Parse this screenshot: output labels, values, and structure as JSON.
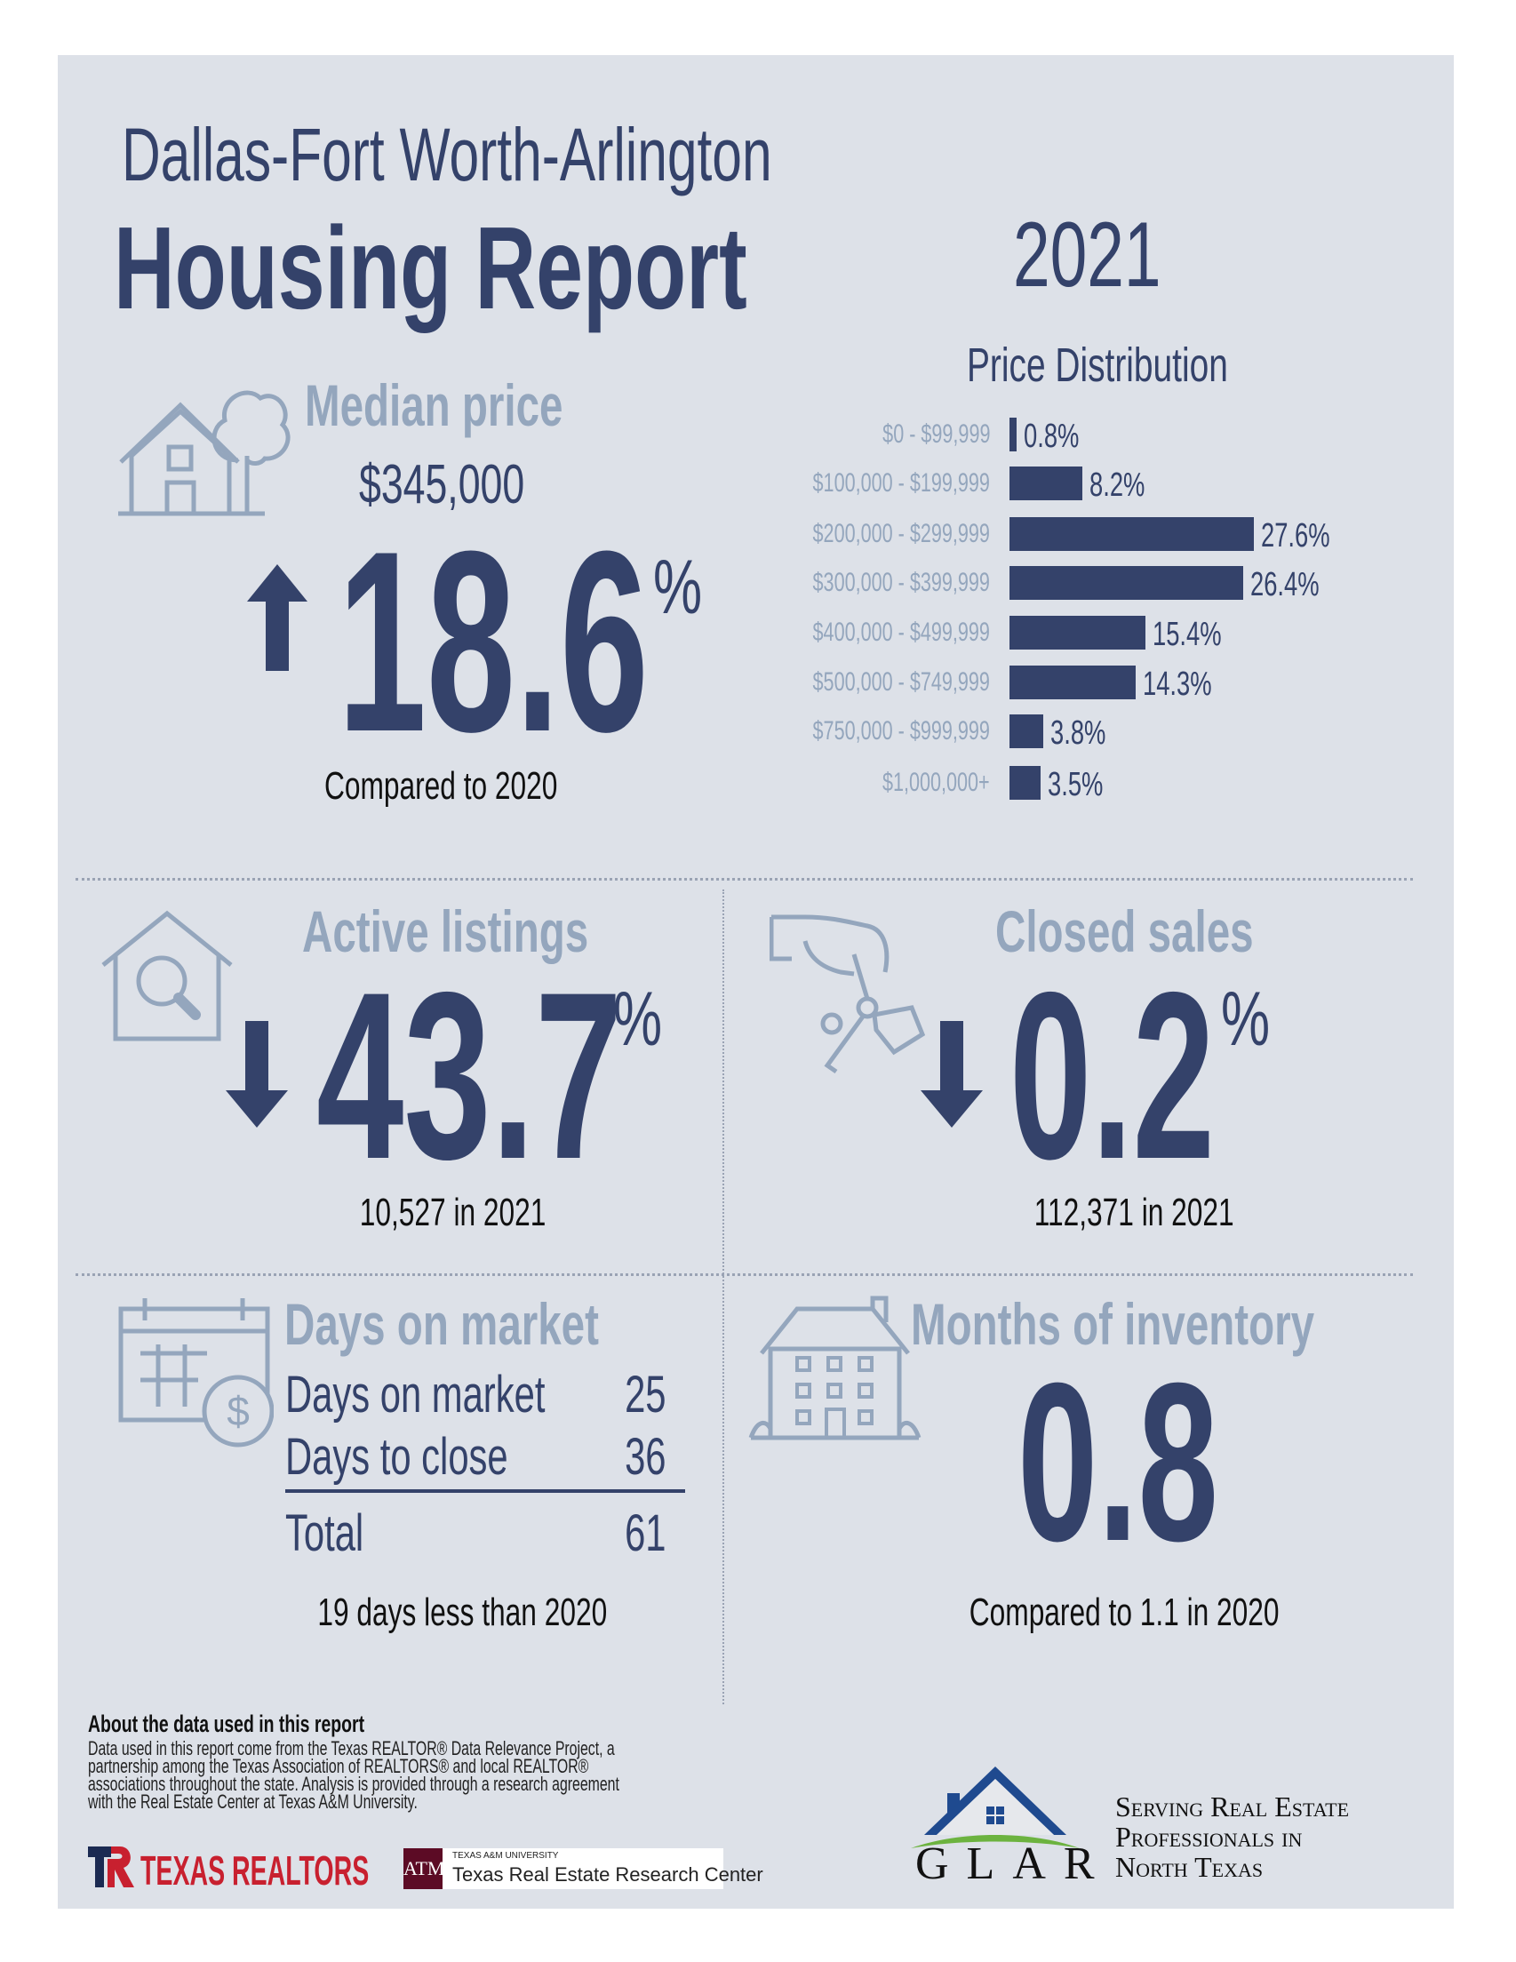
{
  "header": {
    "region": "Dallas-Fort Worth-Arlington",
    "title": "Housing Report",
    "year": "2021"
  },
  "colors": {
    "navy": "#34426a",
    "light": "#94a6bd",
    "panel": "#dde1e8"
  },
  "median_price": {
    "label": "Median price",
    "value": "$345,000",
    "direction": "up",
    "change": "18.6",
    "unit": "%",
    "note": "Compared to 2020",
    "icon": "house-tree-icon"
  },
  "chart_data": {
    "type": "bar",
    "orientation": "horizontal",
    "title": "Price Distribution",
    "categories": [
      "$0 - $99,999",
      "$100,000 - $199,999",
      "$200,000 - $299,999",
      "$300,000 - $399,999",
      "$400,000 - $499,999",
      "$500,000 - $749,999",
      "$750,000 - $999,999",
      "$1,000,000+"
    ],
    "values": [
      0.8,
      8.2,
      27.6,
      26.4,
      15.4,
      14.3,
      3.8,
      3.5
    ],
    "labels": [
      "0.8%",
      "8.2%",
      "27.6%",
      "26.4%",
      "15.4%",
      "14.3%",
      "3.8%",
      "3.5%"
    ],
    "unit": "%"
  },
  "active_listings": {
    "label": "Active listings",
    "direction": "down",
    "change": "43.7",
    "unit": "%",
    "note": "10,527 in 2021",
    "icon": "house-search-icon"
  },
  "closed_sales": {
    "label": "Closed sales",
    "direction": "down",
    "change": "0.2",
    "unit": "%",
    "note": "112,371 in 2021",
    "icon": "hand-keys-icon"
  },
  "days_on_market": {
    "label": "Days on market",
    "rows": [
      {
        "name": "Days on market",
        "value": "25"
      },
      {
        "name": "Days to close",
        "value": "36"
      }
    ],
    "total": {
      "name": "Total",
      "value": "61"
    },
    "note": "19 days less than 2020",
    "icon": "calendar-dollar-icon"
  },
  "months_inventory": {
    "label": "Months of inventory",
    "value": "0.8",
    "note": "Compared to 1.1 in 2020",
    "icon": "building-icon"
  },
  "footer": {
    "about_title": "About the data used in this report",
    "about_lines": [
      "Data used in this report come from the Texas REALTOR® Data Relevance Project, a",
      "partnership among the Texas Association of REALTORS® and local REALTOR®",
      "associations throughout the state. Analysis is provided through a research agreement",
      "with the Real Estate Center at Texas A&M University."
    ],
    "texas_realtors": "TEXAS REALTORS",
    "tamu_small": "TEXAS A&M UNIVERSITY",
    "tamu_center": "Texas Real Estate Research Center",
    "glar": "GLAR",
    "glar_tagline": [
      "Serving Real Estate",
      "Professionals in",
      "North Texas"
    ]
  }
}
